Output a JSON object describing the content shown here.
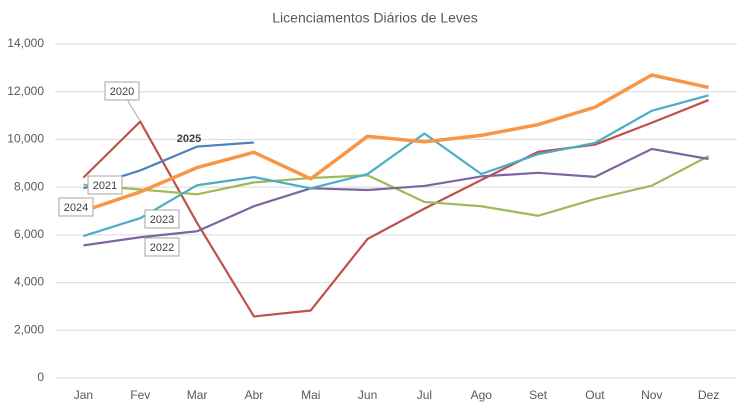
{
  "chart_data": {
    "type": "line",
    "title": "Licenciamentos Diários de Leves",
    "categories": [
      "Jan",
      "Fev",
      "Mar",
      "Abr",
      "Mai",
      "Jun",
      "Jul",
      "Ago",
      "Set",
      "Out",
      "Nov",
      "Dez"
    ],
    "ylim": [
      0,
      14000
    ],
    "yticks": [
      0,
      {
        "value": 2000,
        "label": "2,000"
      },
      {
        "value": 4000,
        "label": "4,000"
      },
      {
        "value": 6000,
        "label": "6,000"
      },
      {
        "value": 8000,
        "label": "8,000"
      },
      {
        "value": 10000,
        "label": "10,000"
      },
      {
        "value": 12000,
        "label": "12,000"
      },
      {
        "value": 14000,
        "label": "14,000"
      }
    ],
    "grid": true,
    "series": [
      {
        "name": "2020",
        "color": "#c0504d",
        "values": [
          8400,
          10750,
          6500,
          2580,
          2830,
          5830,
          7100,
          8300,
          9480,
          9780,
          10700,
          11650
        ]
      },
      {
        "name": "2021",
        "color": "#9bbb59",
        "values": [
          8100,
          7900,
          7700,
          8200,
          8380,
          8500,
          7380,
          7200,
          6800,
          7500,
          8060,
          9300
        ]
      },
      {
        "name": "2022",
        "color": "#8064a2",
        "values": [
          5560,
          5900,
          6150,
          7200,
          7950,
          7880,
          8050,
          8450,
          8600,
          8430,
          9600,
          9180
        ]
      },
      {
        "name": "2023",
        "color": "#4bacc6",
        "values": [
          5950,
          6700,
          8080,
          8420,
          7950,
          8550,
          10250,
          8550,
          9380,
          9850,
          11200,
          11850
        ]
      },
      {
        "name": "2024",
        "color": "#f79646",
        "values": [
          7000,
          7800,
          8820,
          9460,
          8350,
          10130,
          9900,
          10170,
          10620,
          11350,
          12700,
          12180
        ]
      },
      {
        "name": "2025",
        "color": "#4f81bd",
        "values": [
          7950,
          8700,
          9700,
          9870,
          null,
          null,
          null,
          null,
          null,
          null,
          null,
          null
        ]
      }
    ]
  }
}
